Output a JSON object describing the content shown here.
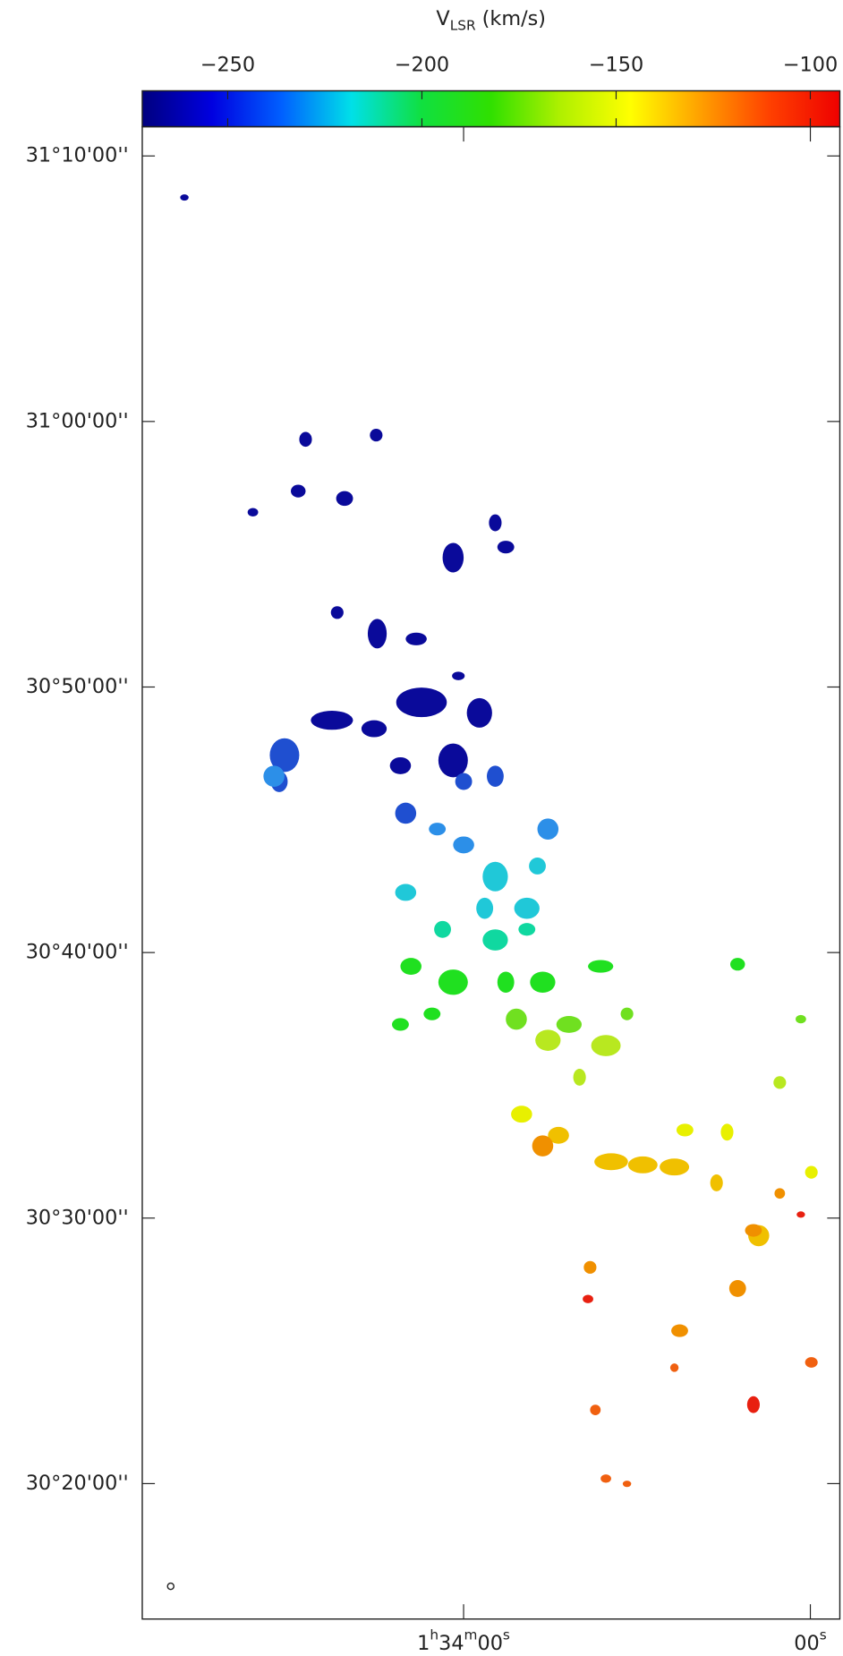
{
  "chart_data": {
    "type": "image",
    "colorbar": {
      "title": {
        "symbol": "V",
        "subscript": "LSR",
        "unit": "(km/s)"
      },
      "clim": [
        -272,
        -92.4
      ],
      "ticks": [
        {
          "value": -250,
          "label": "−250"
        },
        {
          "value": -200,
          "label": "−200"
        },
        {
          "value": -150,
          "label": "−150"
        },
        {
          "value": -100,
          "label": "−100"
        }
      ],
      "colormap": [
        "#00007f",
        "#0000e0",
        "#0060ff",
        "#00e0e8",
        "#10e040",
        "#30e000",
        "#b0f000",
        "#ffff00",
        "#ffa000",
        "#ff4000",
        "#ee0000"
      ]
    },
    "xlim": [
      5695.6,
      5574.9
    ],
    "xticks": [
      {
        "value": 5640,
        "label": "1h34m00s"
      },
      {
        "value": 5580,
        "label": "00s"
      }
    ],
    "ylim": [
      14.9,
      71.1
    ],
    "yticks": [
      {
        "value": 20,
        "label": "30°20'00''"
      },
      {
        "value": 30,
        "label": "30°30'00''"
      },
      {
        "value": 40,
        "label": "30°40'00''"
      },
      {
        "value": 50,
        "label": "30°50'00''"
      },
      {
        "value": 60,
        "label": "31°00'00''"
      },
      {
        "value": 70,
        "label": "31°10'00''"
      }
    ]
  }
}
